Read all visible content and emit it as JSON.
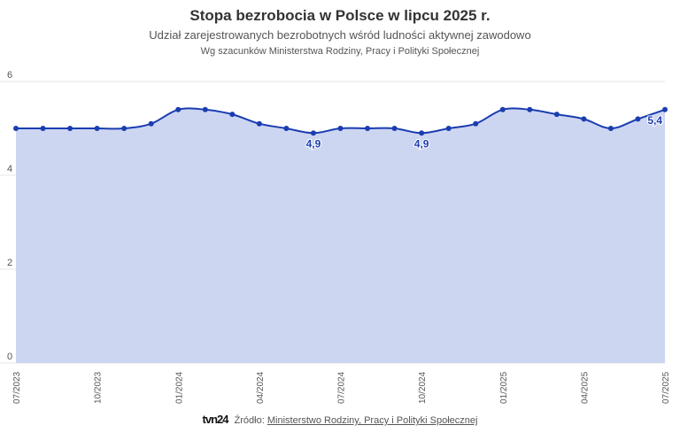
{
  "header": {
    "title": "Stopa bezrobocia w Polsce w lipcu 2025 r.",
    "subtitle": "Udział zarejestrowanych bezrobotnych wśród ludności aktywnej zawodowo",
    "note": "Wg szacunków Ministerstwa Rodziny, Pracy i Polityki Społecznej"
  },
  "footer": {
    "logo": "tvn24",
    "source_label": "Źródło:",
    "source_link": "Ministerstwo Rodziny, Pracy i Polityki Społecznej"
  },
  "chart_data": {
    "type": "area",
    "title": "Stopa bezrobocia w Polsce w lipcu 2025 r.",
    "x": [
      "07/2023",
      "08/2023",
      "09/2023",
      "10/2023",
      "11/2023",
      "12/2023",
      "01/2024",
      "02/2024",
      "03/2024",
      "04/2024",
      "05/2024",
      "06/2024",
      "07/2024",
      "08/2024",
      "09/2024",
      "10/2024",
      "11/2024",
      "12/2024",
      "01/2025",
      "02/2025",
      "03/2025",
      "04/2025",
      "05/2025",
      "06/2025",
      "07/2025"
    ],
    "values": [
      5.0,
      5.0,
      5.0,
      5.0,
      5.0,
      5.1,
      5.4,
      5.4,
      5.3,
      5.1,
      5.0,
      4.9,
      5.0,
      5.0,
      5.0,
      4.9,
      5.0,
      5.1,
      5.4,
      5.4,
      5.3,
      5.2,
      5.0,
      5.2,
      5.4
    ],
    "x_tick_labels": [
      "07/2023",
      "10/2023",
      "01/2024",
      "04/2024",
      "07/2024",
      "10/2024",
      "01/2025",
      "04/2025",
      "07/2025"
    ],
    "y_ticks": [
      0,
      2,
      4,
      6
    ],
    "ylim": [
      0,
      6
    ],
    "grid": true,
    "data_labels": [
      {
        "index": 11,
        "text": "4,9"
      },
      {
        "index": 15,
        "text": "4,9"
      },
      {
        "index": 24,
        "text": "5,4"
      }
    ],
    "colors": {
      "line": "#1a3db0",
      "fill": "#cdd6f1",
      "grid": "#e6e6e6"
    }
  }
}
